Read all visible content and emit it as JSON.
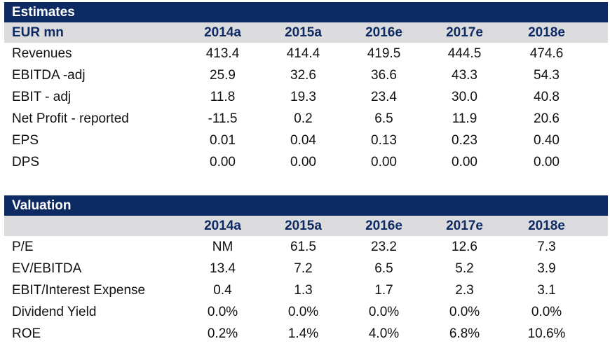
{
  "estimates": {
    "title": "Estimates",
    "unit_label": "EUR mn",
    "years": [
      "2014a",
      "2015a",
      "2016e",
      "2017e",
      "2018e"
    ],
    "rows": [
      {
        "label": "Revenues",
        "values": [
          "413.4",
          "414.4",
          "419.5",
          "444.5",
          "474.6"
        ]
      },
      {
        "label": "EBITDA -adj",
        "values": [
          "25.9",
          "32.6",
          "36.6",
          "43.3",
          "54.3"
        ]
      },
      {
        "label": "EBIT - adj",
        "values": [
          "11.8",
          "19.3",
          "23.4",
          "30.0",
          "40.8"
        ]
      },
      {
        "label": "Net Profit - reported",
        "values": [
          "-11.5",
          "0.2",
          "6.5",
          "11.9",
          "20.6"
        ]
      },
      {
        "label": "EPS",
        "values": [
          "0.01",
          "0.04",
          "0.13",
          "0.23",
          "0.40"
        ]
      },
      {
        "label": "DPS",
        "values": [
          "0.00",
          "0.00",
          "0.00",
          "0.00",
          "0.00"
        ]
      }
    ]
  },
  "valuation": {
    "title": "Valuation",
    "unit_label": "",
    "years": [
      "2014a",
      "2015a",
      "2016e",
      "2017e",
      "2018e"
    ],
    "rows": [
      {
        "label": "P/E",
        "values": [
          "NM",
          "61.5",
          "23.2",
          "12.6",
          "7.3"
        ]
      },
      {
        "label": "EV/EBITDA",
        "values": [
          "13.4",
          "7.2",
          "6.5",
          "5.2",
          "3.9"
        ]
      },
      {
        "label": "EBIT/Interest Expense",
        "values": [
          "0.4",
          "1.3",
          "1.7",
          "2.3",
          "3.1"
        ]
      },
      {
        "label": "Dividend Yield",
        "values": [
          "0.0%",
          "0.0%",
          "0.0%",
          "0.0%",
          "0.0%"
        ]
      },
      {
        "label": "ROE",
        "values": [
          "0.2%",
          "1.4%",
          "4.0%",
          "6.8%",
          "10.6%"
        ]
      }
    ]
  }
}
